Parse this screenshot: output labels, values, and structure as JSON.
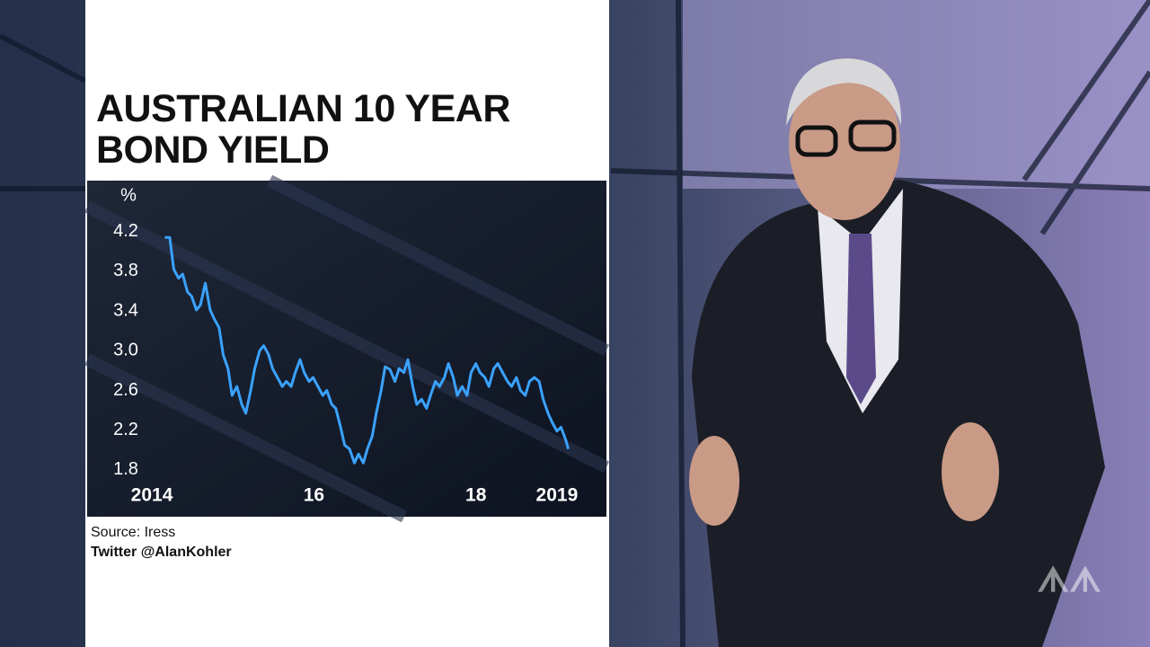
{
  "chart_data": {
    "type": "line",
    "title": "AUSTRALIAN 10 YEAR BOND YIELD",
    "y_label": "%",
    "x": [
      2014.16,
      2014.22,
      2014.27,
      2014.33,
      2014.38,
      2014.44,
      2014.49,
      2014.55,
      2014.6,
      2014.66,
      2014.72,
      2014.77,
      2014.83,
      2014.88,
      2014.94,
      2014.99,
      2015.05,
      2015.11,
      2015.16,
      2015.22,
      2015.27,
      2015.33,
      2015.38,
      2015.44,
      2015.49,
      2015.55,
      2015.61,
      2015.66,
      2015.72,
      2015.77,
      2015.83,
      2015.88,
      2015.94,
      2015.99,
      2016.05,
      2016.11,
      2016.16,
      2016.22,
      2016.27,
      2016.33,
      2016.38,
      2016.44,
      2016.5,
      2016.55,
      2016.61,
      2016.66,
      2016.72,
      2016.77,
      2016.83,
      2016.88,
      2016.94,
      2017.0,
      2017.05,
      2017.11,
      2017.16,
      2017.22,
      2017.27,
      2017.33,
      2017.39,
      2017.44,
      2017.5,
      2017.55,
      2017.61,
      2017.66,
      2017.72,
      2017.77,
      2017.83,
      2017.89,
      2017.94,
      2018.0,
      2018.05,
      2018.11,
      2018.16,
      2018.22,
      2018.27,
      2018.33,
      2018.39,
      2018.44,
      2018.5,
      2018.55,
      2018.61,
      2018.66,
      2018.72,
      2018.78,
      2018.83,
      2018.89,
      2018.94,
      2019.0,
      2019.05,
      2019.11,
      2019.14
    ],
    "series": [
      {
        "color": "#3aa2ff",
        "values": [
          4.14,
          4.14,
          3.82,
          3.73,
          3.77,
          3.59,
          3.55,
          3.41,
          3.46,
          3.68,
          3.41,
          3.32,
          3.23,
          2.96,
          2.82,
          2.55,
          2.64,
          2.46,
          2.37,
          2.6,
          2.82,
          3.0,
          3.05,
          2.96,
          2.82,
          2.73,
          2.64,
          2.69,
          2.64,
          2.78,
          2.91,
          2.78,
          2.69,
          2.73,
          2.64,
          2.55,
          2.6,
          2.46,
          2.42,
          2.23,
          2.05,
          2.01,
          1.87,
          1.96,
          1.87,
          2.01,
          2.14,
          2.37,
          2.6,
          2.84,
          2.81,
          2.69,
          2.82,
          2.78,
          2.91,
          2.64,
          2.46,
          2.51,
          2.42,
          2.55,
          2.69,
          2.64,
          2.73,
          2.87,
          2.73,
          2.55,
          2.64,
          2.55,
          2.78,
          2.87,
          2.78,
          2.73,
          2.64,
          2.82,
          2.87,
          2.78,
          2.69,
          2.64,
          2.73,
          2.6,
          2.55,
          2.69,
          2.73,
          2.69,
          2.51,
          2.37,
          2.28,
          2.19,
          2.23,
          2.1,
          2.01
        ]
      }
    ],
    "xlim": [
      2013.9,
      2019.5
    ],
    "xticks": [
      2014,
      {
        "value": 2016,
        "label": "16"
      },
      {
        "value": 2018,
        "label": "18"
      },
      2019
    ],
    "ylim": [
      1.7,
      4.35
    ],
    "yticks": [
      {
        "value": 1.8,
        "label": "1.8"
      },
      2.2,
      2.6,
      {
        "value": 3,
        "label": "3.0"
      },
      3.4,
      3.8,
      4.2
    ]
  },
  "footer": {
    "source": "Source: Iress",
    "credit": "Twitter @AlanKohler"
  }
}
